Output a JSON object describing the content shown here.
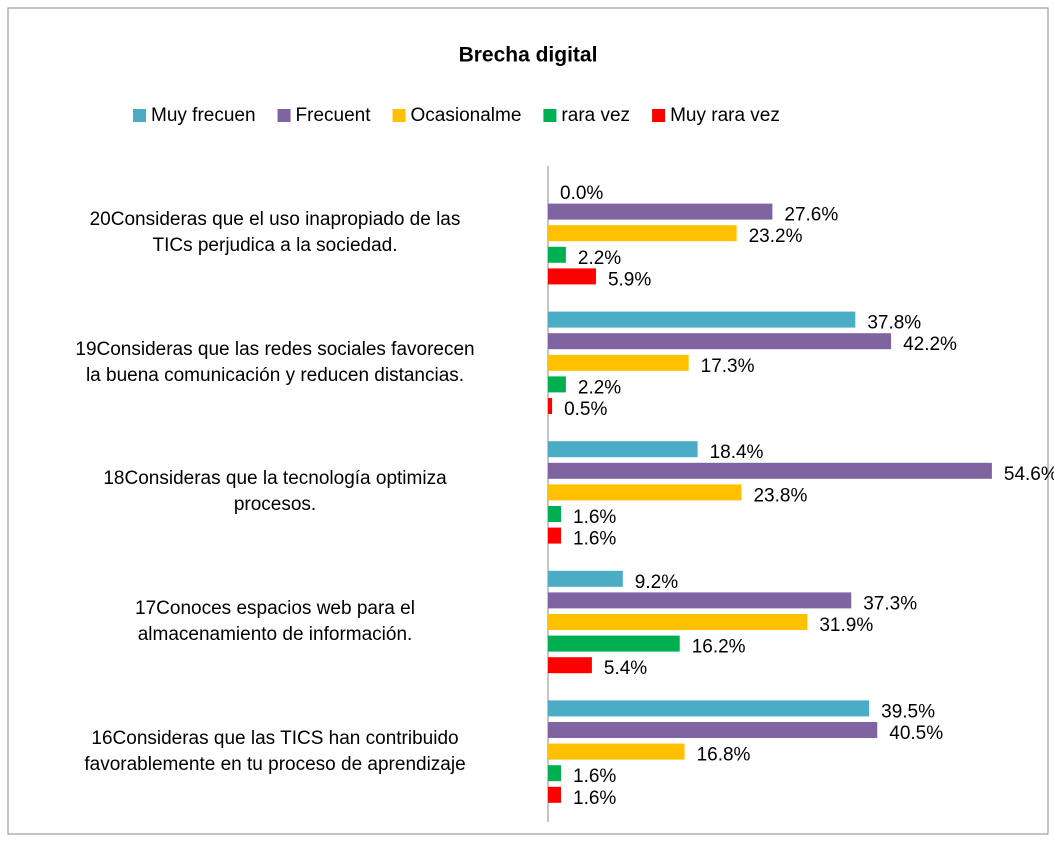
{
  "chart_data": {
    "type": "hbar",
    "title": "Brecha digital",
    "categories": [
      "20Consideras que el uso inapropiado de las\nTICs perjudica a la sociedad.",
      "19Consideras que las redes sociales favorecen\nla buena comunicación y reducen distancias.",
      "18Consideras que la tecnología optimiza\nprocesos.",
      "17Conoces espacios web para el\nalmacenamiento de información.",
      "16Consideras que las TICS han contribuido\nfavorablemente en tu proceso de aprendizaje"
    ],
    "series": [
      {
        "name": "Muy frecuen",
        "color": "#4bacc6",
        "values": [
          0,
          37.8,
          18.4,
          9.2,
          39.5
        ],
        "value_labels": [
          "0.0%",
          "37.8%",
          "18.4%",
          "9.2%",
          "39.5%"
        ]
      },
      {
        "name": "Frecuent",
        "color": "#8064a2",
        "values": [
          27.6,
          42.2,
          54.6,
          37.3,
          40.5
        ],
        "value_labels": [
          "27.6%",
          "42.2%",
          "54.6%",
          "37.3%",
          "40.5%"
        ]
      },
      {
        "name": "Ocasionalme",
        "color": "#ffc000",
        "values": [
          23.2,
          17.3,
          23.8,
          31.9,
          16.8
        ],
        "value_labels": [
          "23.2%",
          "17.3%",
          "23.8%",
          "31.9%",
          "16.8%"
        ]
      },
      {
        "name": "rara vez",
        "color": "#00b050",
        "values": [
          2.2,
          2.2,
          1.6,
          16.2,
          1.6
        ],
        "value_labels": [
          "2.2%",
          "2.2%",
          "1.6%",
          "16.2%",
          "1.6%"
        ]
      },
      {
        "name": "Muy rara vez",
        "color": "#ff0000",
        "values": [
          5.9,
          0.5,
          1.6,
          5.4,
          1.6
        ],
        "value_labels": [
          "5.9%",
          "0.5%",
          "1.6%",
          "5.4%",
          "1.6%"
        ]
      }
    ]
  }
}
